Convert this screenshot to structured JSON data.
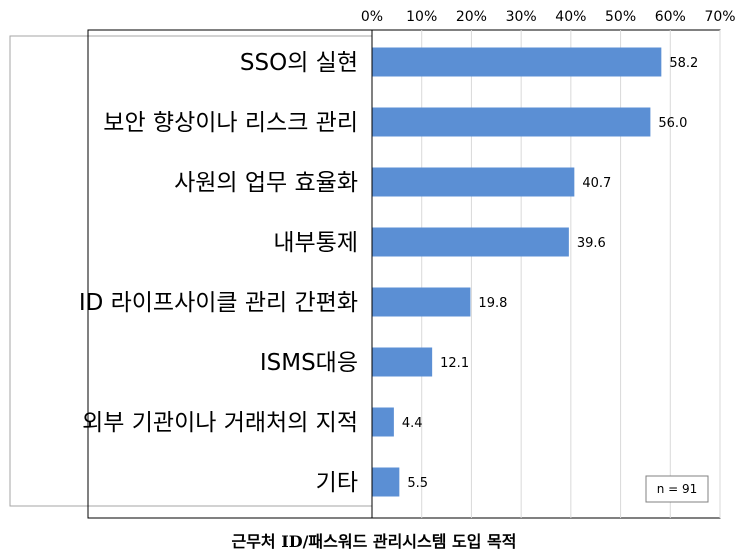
{
  "caption": "근무처 ID/패스워드 관리시스템 도입 목적",
  "chart_data": {
    "type": "bar",
    "orientation": "horizontal",
    "categories": [
      "SSO의 실현",
      "보안 향상이나 리스크 관리",
      "사원의 업무 효율화",
      "내부통제",
      "ID 라이프사이클 관리 간편화",
      "ISMS대응",
      "외부 기관이나 거래처의 지적",
      "기타"
    ],
    "values": [
      58.2,
      56.0,
      40.7,
      39.6,
      19.8,
      12.1,
      4.4,
      5.5
    ],
    "value_labels": [
      "58.2",
      "56.0",
      "40.7",
      "39.6",
      "19.8",
      "12.1",
      "4.4",
      "5.5"
    ],
    "x_ticks": [
      0,
      10,
      20,
      30,
      40,
      50,
      60,
      70
    ],
    "x_tick_labels": [
      "0%",
      "10%",
      "20%",
      "30%",
      "40%",
      "50%",
      "60%",
      "70%"
    ],
    "xlim": [
      0,
      70
    ],
    "xaxis_position": "top",
    "grid": true,
    "note": "n = 91",
    "bar_color": "#5b8fd4",
    "grid_color": "#d9d9d9"
  }
}
